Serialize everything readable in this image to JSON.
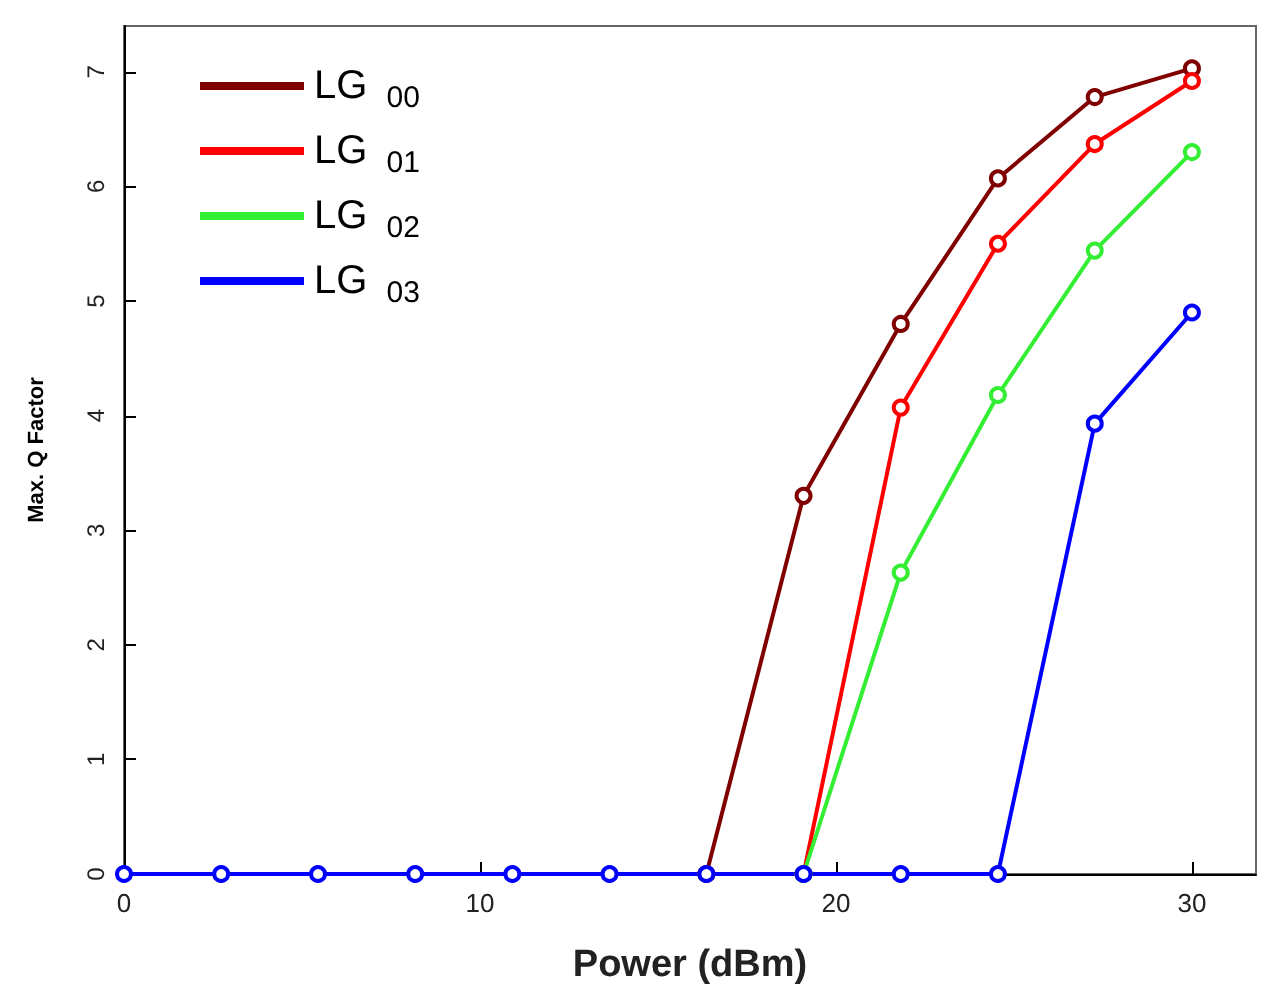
{
  "chart_data": {
    "type": "line",
    "xlabel": "Power (dBm)",
    "ylabel": "Max. Q Factor",
    "x": [
      0,
      2.73,
      5.45,
      8.18,
      10.91,
      13.64,
      16.36,
      19.09,
      21.82,
      24.55,
      27.27,
      30
    ],
    "series": [
      {
        "name": "LG $_{00}$",
        "color": "#800000",
        "values": [
          null,
          null,
          null,
          null,
          null,
          null,
          0,
          3.3,
          4.8,
          6.07,
          6.78,
          7.03
        ]
      },
      {
        "name": "LG $_{01}$",
        "color": "#ff0000",
        "values": [
          null,
          null,
          null,
          null,
          null,
          null,
          null,
          0,
          4.07,
          5.5,
          6.37,
          6.92
        ]
      },
      {
        "name": "LG $_{02}$",
        "color": "#33ee33",
        "values": [
          null,
          null,
          null,
          null,
          null,
          null,
          null,
          0,
          2.63,
          4.18,
          5.44,
          6.3
        ]
      },
      {
        "name": "LG $_{03}$",
        "color": "#0000ff",
        "values": [
          0,
          0,
          0,
          0,
          0,
          0,
          0,
          0,
          0,
          0,
          3.93,
          4.9
        ]
      }
    ],
    "xlim": [
      0,
      31.8
    ],
    "xticks": [
      0,
      10,
      20,
      30
    ],
    "ylim": [
      0,
      7.4
    ],
    "yticks": [
      0,
      1,
      2,
      3,
      4,
      5,
      6,
      7
    ],
    "grid": false,
    "legend": "top left",
    "marker": "circle",
    "line_style": "solid"
  }
}
